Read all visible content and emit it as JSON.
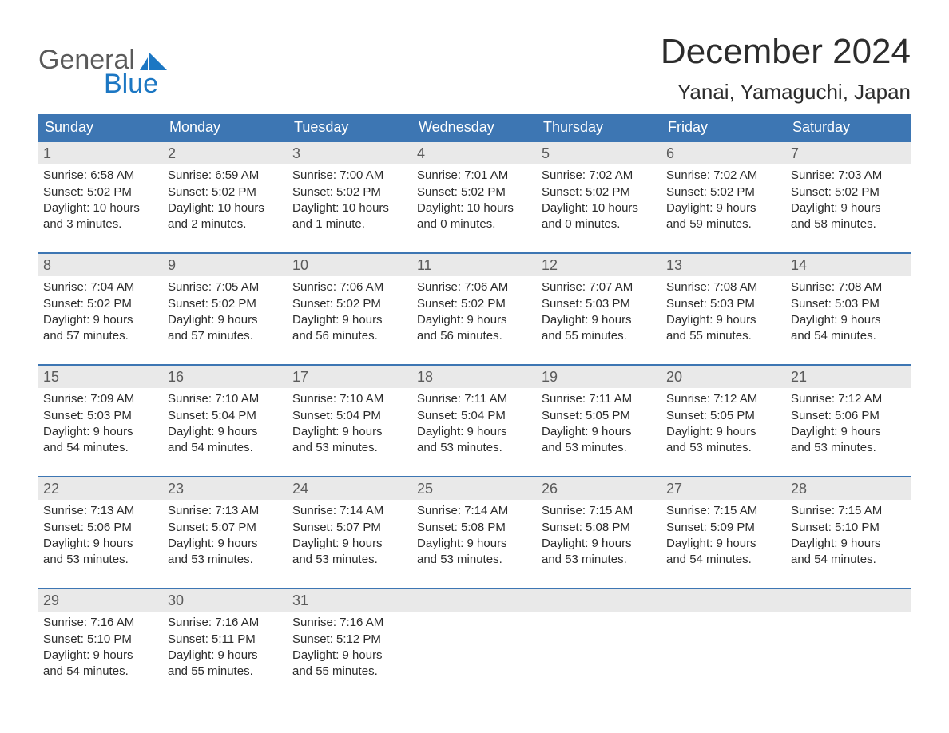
{
  "logo": {
    "line1": "General",
    "line2": "Blue",
    "icon_color": "#1c77c3"
  },
  "title": "December 2024",
  "subtitle": "Yanai, Yamaguchi, Japan",
  "colors": {
    "header_bg": "#3d76b3",
    "header_text": "#ffffff",
    "week_border": "#3d76b3",
    "daynum_bg": "#e9e9e9",
    "daynum_text": "#5a5a5a",
    "body_text": "#2c2c2c",
    "background": "#ffffff",
    "accent_blue": "#1c77c3"
  },
  "typography": {
    "title_fontsize": 44,
    "subtitle_fontsize": 26,
    "dayhead_fontsize": 18,
    "daynum_fontsize": 18,
    "cell_fontsize": 15,
    "font_family": "Arial"
  },
  "day_names": [
    "Sunday",
    "Monday",
    "Tuesday",
    "Wednesday",
    "Thursday",
    "Friday",
    "Saturday"
  ],
  "weeks": [
    [
      {
        "d": "1",
        "sr": "Sunrise: 6:58 AM",
        "ss": "Sunset: 5:02 PM",
        "dl1": "Daylight: 10 hours",
        "dl2": "and 3 minutes."
      },
      {
        "d": "2",
        "sr": "Sunrise: 6:59 AM",
        "ss": "Sunset: 5:02 PM",
        "dl1": "Daylight: 10 hours",
        "dl2": "and 2 minutes."
      },
      {
        "d": "3",
        "sr": "Sunrise: 7:00 AM",
        "ss": "Sunset: 5:02 PM",
        "dl1": "Daylight: 10 hours",
        "dl2": "and 1 minute."
      },
      {
        "d": "4",
        "sr": "Sunrise: 7:01 AM",
        "ss": "Sunset: 5:02 PM",
        "dl1": "Daylight: 10 hours",
        "dl2": "and 0 minutes."
      },
      {
        "d": "5",
        "sr": "Sunrise: 7:02 AM",
        "ss": "Sunset: 5:02 PM",
        "dl1": "Daylight: 10 hours",
        "dl2": "and 0 minutes."
      },
      {
        "d": "6",
        "sr": "Sunrise: 7:02 AM",
        "ss": "Sunset: 5:02 PM",
        "dl1": "Daylight: 9 hours",
        "dl2": "and 59 minutes."
      },
      {
        "d": "7",
        "sr": "Sunrise: 7:03 AM",
        "ss": "Sunset: 5:02 PM",
        "dl1": "Daylight: 9 hours",
        "dl2": "and 58 minutes."
      }
    ],
    [
      {
        "d": "8",
        "sr": "Sunrise: 7:04 AM",
        "ss": "Sunset: 5:02 PM",
        "dl1": "Daylight: 9 hours",
        "dl2": "and 57 minutes."
      },
      {
        "d": "9",
        "sr": "Sunrise: 7:05 AM",
        "ss": "Sunset: 5:02 PM",
        "dl1": "Daylight: 9 hours",
        "dl2": "and 57 minutes."
      },
      {
        "d": "10",
        "sr": "Sunrise: 7:06 AM",
        "ss": "Sunset: 5:02 PM",
        "dl1": "Daylight: 9 hours",
        "dl2": "and 56 minutes."
      },
      {
        "d": "11",
        "sr": "Sunrise: 7:06 AM",
        "ss": "Sunset: 5:02 PM",
        "dl1": "Daylight: 9 hours",
        "dl2": "and 56 minutes."
      },
      {
        "d": "12",
        "sr": "Sunrise: 7:07 AM",
        "ss": "Sunset: 5:03 PM",
        "dl1": "Daylight: 9 hours",
        "dl2": "and 55 minutes."
      },
      {
        "d": "13",
        "sr": "Sunrise: 7:08 AM",
        "ss": "Sunset: 5:03 PM",
        "dl1": "Daylight: 9 hours",
        "dl2": "and 55 minutes."
      },
      {
        "d": "14",
        "sr": "Sunrise: 7:08 AM",
        "ss": "Sunset: 5:03 PM",
        "dl1": "Daylight: 9 hours",
        "dl2": "and 54 minutes."
      }
    ],
    [
      {
        "d": "15",
        "sr": "Sunrise: 7:09 AM",
        "ss": "Sunset: 5:03 PM",
        "dl1": "Daylight: 9 hours",
        "dl2": "and 54 minutes."
      },
      {
        "d": "16",
        "sr": "Sunrise: 7:10 AM",
        "ss": "Sunset: 5:04 PM",
        "dl1": "Daylight: 9 hours",
        "dl2": "and 54 minutes."
      },
      {
        "d": "17",
        "sr": "Sunrise: 7:10 AM",
        "ss": "Sunset: 5:04 PM",
        "dl1": "Daylight: 9 hours",
        "dl2": "and 53 minutes."
      },
      {
        "d": "18",
        "sr": "Sunrise: 7:11 AM",
        "ss": "Sunset: 5:04 PM",
        "dl1": "Daylight: 9 hours",
        "dl2": "and 53 minutes."
      },
      {
        "d": "19",
        "sr": "Sunrise: 7:11 AM",
        "ss": "Sunset: 5:05 PM",
        "dl1": "Daylight: 9 hours",
        "dl2": "and 53 minutes."
      },
      {
        "d": "20",
        "sr": "Sunrise: 7:12 AM",
        "ss": "Sunset: 5:05 PM",
        "dl1": "Daylight: 9 hours",
        "dl2": "and 53 minutes."
      },
      {
        "d": "21",
        "sr": "Sunrise: 7:12 AM",
        "ss": "Sunset: 5:06 PM",
        "dl1": "Daylight: 9 hours",
        "dl2": "and 53 minutes."
      }
    ],
    [
      {
        "d": "22",
        "sr": "Sunrise: 7:13 AM",
        "ss": "Sunset: 5:06 PM",
        "dl1": "Daylight: 9 hours",
        "dl2": "and 53 minutes."
      },
      {
        "d": "23",
        "sr": "Sunrise: 7:13 AM",
        "ss": "Sunset: 5:07 PM",
        "dl1": "Daylight: 9 hours",
        "dl2": "and 53 minutes."
      },
      {
        "d": "24",
        "sr": "Sunrise: 7:14 AM",
        "ss": "Sunset: 5:07 PM",
        "dl1": "Daylight: 9 hours",
        "dl2": "and 53 minutes."
      },
      {
        "d": "25",
        "sr": "Sunrise: 7:14 AM",
        "ss": "Sunset: 5:08 PM",
        "dl1": "Daylight: 9 hours",
        "dl2": "and 53 minutes."
      },
      {
        "d": "26",
        "sr": "Sunrise: 7:15 AM",
        "ss": "Sunset: 5:08 PM",
        "dl1": "Daylight: 9 hours",
        "dl2": "and 53 minutes."
      },
      {
        "d": "27",
        "sr": "Sunrise: 7:15 AM",
        "ss": "Sunset: 5:09 PM",
        "dl1": "Daylight: 9 hours",
        "dl2": "and 54 minutes."
      },
      {
        "d": "28",
        "sr": "Sunrise: 7:15 AM",
        "ss": "Sunset: 5:10 PM",
        "dl1": "Daylight: 9 hours",
        "dl2": "and 54 minutes."
      }
    ],
    [
      {
        "d": "29",
        "sr": "Sunrise: 7:16 AM",
        "ss": "Sunset: 5:10 PM",
        "dl1": "Daylight: 9 hours",
        "dl2": "and 54 minutes."
      },
      {
        "d": "30",
        "sr": "Sunrise: 7:16 AM",
        "ss": "Sunset: 5:11 PM",
        "dl1": "Daylight: 9 hours",
        "dl2": "and 55 minutes."
      },
      {
        "d": "31",
        "sr": "Sunrise: 7:16 AM",
        "ss": "Sunset: 5:12 PM",
        "dl1": "Daylight: 9 hours",
        "dl2": "and 55 minutes."
      },
      {
        "empty": true
      },
      {
        "empty": true
      },
      {
        "empty": true
      },
      {
        "empty": true
      }
    ]
  ]
}
